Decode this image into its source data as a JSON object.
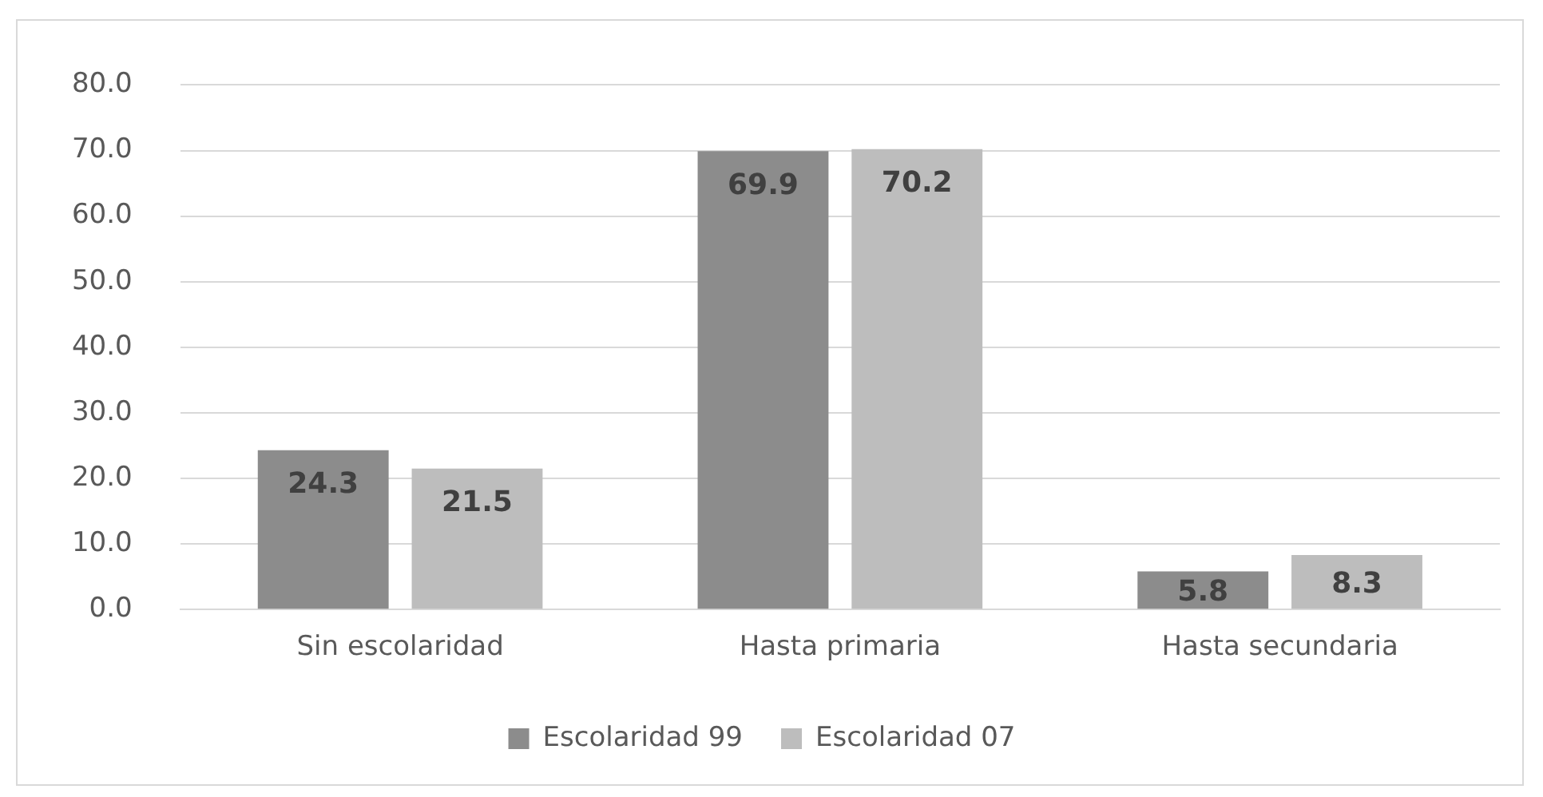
{
  "chart_data": {
    "type": "bar",
    "categories": [
      "Sin escolaridad",
      "Hasta primaria",
      "Hasta secundaria"
    ],
    "series": [
      {
        "name": "Escolaridad 99",
        "color": "#8c8c8c",
        "values": [
          24.3,
          69.9,
          5.8
        ]
      },
      {
        "name": "Escolaridad 07",
        "color": "#bdbdbd",
        "values": [
          21.5,
          70.2,
          8.3
        ]
      }
    ],
    "ylim": [
      0,
      80
    ],
    "yticks": [
      {
        "value": 0,
        "label": "0.0"
      },
      {
        "value": 10,
        "label": "10.0"
      },
      {
        "value": 20,
        "label": "20.0"
      },
      {
        "value": 30,
        "label": "30.0"
      },
      {
        "value": 40,
        "label": "40.0"
      },
      {
        "value": 50,
        "label": "50.0"
      },
      {
        "value": 60,
        "label": "60.0"
      },
      {
        "value": 70,
        "label": "70.0"
      },
      {
        "value": 80,
        "label": "80.0"
      }
    ],
    "grid": "y",
    "legend": "bottom",
    "data_labels": true
  }
}
